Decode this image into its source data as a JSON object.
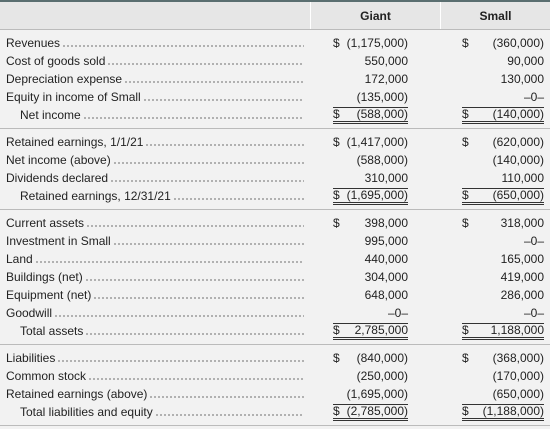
{
  "header": {
    "columns": [
      "Giant",
      "Small"
    ]
  },
  "sections": [
    {
      "rows": [
        {
          "label": "Revenues",
          "cells": [
            {
              "sign": "$",
              "amount": "(1,175,000)"
            },
            {
              "sign": "$",
              "amount": "(360,000)"
            }
          ]
        },
        {
          "label": "Cost of goods sold",
          "cells": [
            {
              "amount": "550,000"
            },
            {
              "amount": "90,000"
            }
          ]
        },
        {
          "label": "Depreciation expense",
          "cells": [
            {
              "amount": "172,000"
            },
            {
              "amount": "130,000"
            }
          ]
        },
        {
          "label": "Equity in income of Small",
          "cells": [
            {
              "amount": "(135,000)"
            },
            {
              "amount": "–0–"
            }
          ]
        },
        {
          "label": "Net income",
          "total": true,
          "cells": [
            {
              "sign": "$",
              "amount": "(588,000)"
            },
            {
              "sign": "$",
              "amount": "(140,000)"
            }
          ]
        }
      ]
    },
    {
      "rows": [
        {
          "label": "Retained earnings, 1/1/21",
          "cells": [
            {
              "sign": "$",
              "amount": "(1,417,000)"
            },
            {
              "sign": "$",
              "amount": "(620,000)"
            }
          ]
        },
        {
          "label": "Net income (above)",
          "cells": [
            {
              "amount": "(588,000)"
            },
            {
              "amount": "(140,000)"
            }
          ]
        },
        {
          "label": "Dividends declared",
          "cells": [
            {
              "amount": "310,000"
            },
            {
              "amount": "110,000"
            }
          ]
        },
        {
          "label": "Retained earnings, 12/31/21",
          "total": true,
          "cells": [
            {
              "sign": "$",
              "amount": "(1,695,000)"
            },
            {
              "sign": "$",
              "amount": "(650,000)"
            }
          ]
        }
      ]
    },
    {
      "rows": [
        {
          "label": "Current assets",
          "cells": [
            {
              "sign": "$",
              "amount": "398,000"
            },
            {
              "sign": "$",
              "amount": "318,000"
            }
          ]
        },
        {
          "label": "Investment in Small",
          "cells": [
            {
              "amount": "995,000"
            },
            {
              "amount": "–0–"
            }
          ]
        },
        {
          "label": "Land",
          "cells": [
            {
              "amount": "440,000"
            },
            {
              "amount": "165,000"
            }
          ]
        },
        {
          "label": "Buildings (net)",
          "cells": [
            {
              "amount": "304,000"
            },
            {
              "amount": "419,000"
            }
          ]
        },
        {
          "label": "Equipment (net)",
          "cells": [
            {
              "amount": "648,000"
            },
            {
              "amount": "286,000"
            }
          ]
        },
        {
          "label": "Goodwill",
          "cells": [
            {
              "amount": "–0–"
            },
            {
              "amount": "–0–"
            }
          ]
        },
        {
          "label": "Total assets",
          "total": true,
          "cells": [
            {
              "sign": "$",
              "amount": "2,785,000"
            },
            {
              "sign": "$",
              "amount": "1,188,000"
            }
          ]
        }
      ]
    },
    {
      "rows": [
        {
          "label": "Liabilities",
          "cells": [
            {
              "sign": "$",
              "amount": "(840,000)"
            },
            {
              "sign": "$",
              "amount": "(368,000)"
            }
          ]
        },
        {
          "label": "Common stock",
          "cells": [
            {
              "amount": "(250,000)"
            },
            {
              "amount": "(170,000)"
            }
          ]
        },
        {
          "label": "Retained earnings (above)",
          "cells": [
            {
              "amount": "(1,695,000)"
            },
            {
              "amount": "(650,000)"
            }
          ]
        },
        {
          "label": "Total liabilities and equity",
          "total": true,
          "cells": [
            {
              "sign": "$",
              "amount": "(2,785,000)"
            },
            {
              "sign": "$",
              "amount": "(1,188,000)"
            }
          ]
        }
      ]
    }
  ]
}
